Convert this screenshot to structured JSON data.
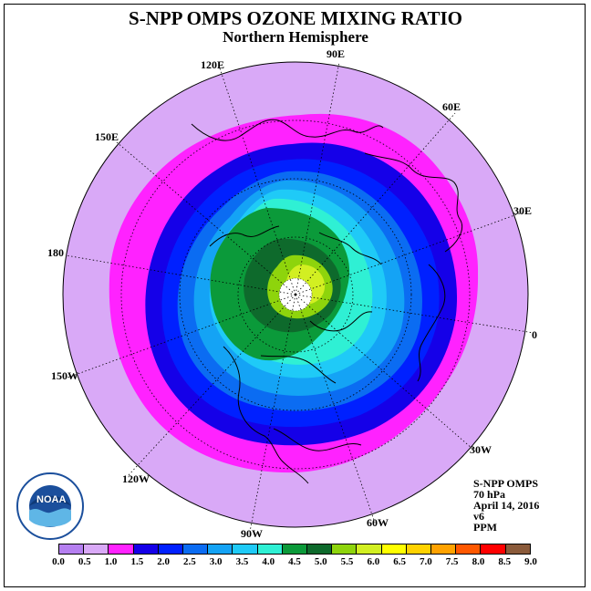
{
  "title": "S-NPP OMPS OZONE MIXING RATIO",
  "subtitle": "Northern Hemisphere",
  "longitude_labels": {
    "e90": "90E",
    "e120": "120E",
    "e60": "60E",
    "e150": "150E",
    "e30": "30E",
    "d180": "180",
    "d0": "0",
    "w150": "150W",
    "w30": "30W",
    "w120": "120W",
    "w60": "60W",
    "w90": "90W"
  },
  "info": {
    "instrument": "S-NPP OMPS",
    "level": "70 hPa",
    "date": "April 14, 2016",
    "version": "v6",
    "units": "PPM"
  },
  "logo_text": "NOAA",
  "colorbar": {
    "ticks": [
      "0.0",
      "0.5",
      "1.0",
      "1.5",
      "2.0",
      "2.5",
      "3.0",
      "3.5",
      "4.0",
      "4.5",
      "5.0",
      "5.5",
      "6.0",
      "6.5",
      "7.0",
      "7.5",
      "8.0",
      "8.5",
      "9.0"
    ],
    "colors": [
      "#b57ff0",
      "#d9a9f7",
      "#ff22ff",
      "#1500e8",
      "#0020ff",
      "#0b6cf2",
      "#14a3f5",
      "#1fcaf7",
      "#2ff0d4",
      "#0b9a3a",
      "#0e6a2c",
      "#8ed40c",
      "#d2ef22",
      "#ffff00",
      "#ffd200",
      "#ffa200",
      "#ff5800",
      "#ff0000",
      "#8a5a3a"
    ]
  },
  "map_colors": {
    "outer": "#d9a9f7",
    "ring_magenta": "#ff22ff",
    "ring_navy": "#1500e8",
    "ring_blue": "#0020ff",
    "ring_mid": "#0b6cf2",
    "ring_light": "#14a3f5",
    "ring_cyan": "#1fcaf7",
    "ring_aqua": "#2ff0d4",
    "core_green": "#0b9a3a",
    "core_dark": "#0e6a2c",
    "core_lime": "#8ed40c",
    "core_yellow": "#d2ef22",
    "pole": "#ffffff"
  }
}
